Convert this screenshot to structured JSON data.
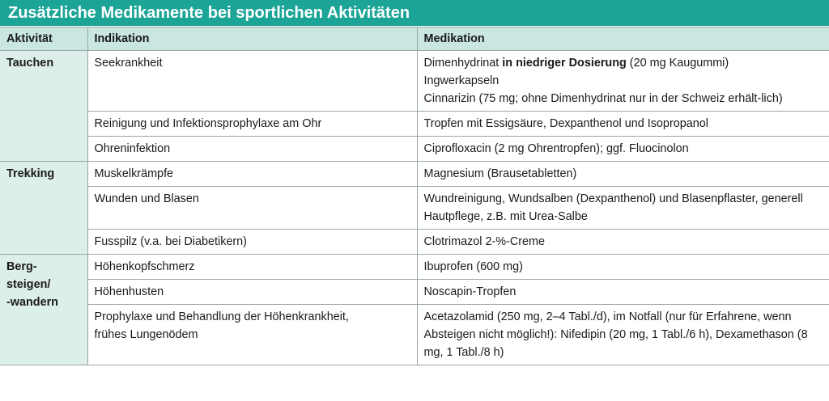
{
  "title": "Zusätzliche Medikamente bei sportlichen Aktivitäten",
  "table": {
    "header": [
      "Aktivität",
      "Indikation",
      "Medikation"
    ],
    "groups": [
      {
        "activity": [
          "Tauchen"
        ],
        "rows": [
          {
            "indication": [
              "Seekrankheit"
            ],
            "medication": [
              [
                {
                  "text": "Dimenhydrinat "
                },
                {
                  "text": "in niedriger Dosierung",
                  "bold": true
                },
                {
                  "text": " (20 mg Kaugummi)"
                }
              ],
              [
                {
                  "text": "Ingwerkapseln"
                }
              ],
              [
                {
                  "text": "Cinnarizin (75 mg; ohne Dimenhydrinat nur in der Schweiz erhält-lich)"
                }
              ]
            ]
          },
          {
            "indication": [
              "Reinigung und Infektionsprophylaxe am Ohr"
            ],
            "medication": [
              [
                {
                  "text": "Tropfen mit Essigsäure, Dexpanthenol und Isopropanol"
                }
              ]
            ]
          },
          {
            "indication": [
              "Ohreninfektion"
            ],
            "medication": [
              [
                {
                  "text": "Ciprofloxacin (2 mg Ohrentropfen); ggf. Fluocinolon"
                }
              ]
            ]
          }
        ]
      },
      {
        "activity": [
          "Trekking"
        ],
        "rows": [
          {
            "indication": [
              "Muskelkrämpfe"
            ],
            "medication": [
              [
                {
                  "text": "Magnesium (Brausetabletten)"
                }
              ]
            ]
          },
          {
            "indication": [
              "Wunden und Blasen"
            ],
            "medication": [
              [
                {
                  "text": "Wundreinigung, Wundsalben (Dexpanthenol) und Blasenpflaster, generell Hautpflege, z.B. mit Urea-Salbe"
                }
              ]
            ]
          },
          {
            "indication": [
              "Fusspilz (v.a. bei Diabetikern)"
            ],
            "medication": [
              [
                {
                  "text": "Clotrimazol 2-%-Creme"
                }
              ]
            ]
          }
        ]
      },
      {
        "activity": [
          "Berg-",
          "steigen/",
          "-wandern"
        ],
        "rows": [
          {
            "indication": [
              "Höhenkopfschmerz"
            ],
            "medication": [
              [
                {
                  "text": "Ibuprofen (600 mg)"
                }
              ]
            ]
          },
          {
            "indication": [
              "Höhenhusten"
            ],
            "medication": [
              [
                {
                  "text": "Noscapin-Tropfen"
                }
              ]
            ]
          },
          {
            "indication": [
              "Prophylaxe und Behandlung der Höhenkrankheit,",
              "frühes Lungenödem"
            ],
            "medication": [
              [
                {
                  "text": "Acetazolamid (250 mg, 2–4 Tabl./d), im Notfall (nur für Erfahrene, wenn Absteigen nicht möglich!): Nifedipin (20 mg, 1 Tabl./6 h), Dexamethason (8 mg, 1 Tabl./8 h)"
                }
              ]
            ]
          }
        ]
      }
    ]
  }
}
